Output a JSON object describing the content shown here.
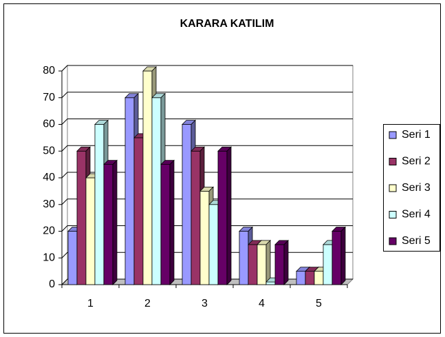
{
  "chart_data": {
    "type": "bar3d",
    "title": "KARARA KATILIM",
    "categories": [
      "1",
      "2",
      "3",
      "4",
      "5"
    ],
    "series": [
      {
        "name": "Seri 1",
        "color": "#9999ff",
        "values": [
          20,
          70,
          60,
          20,
          5
        ]
      },
      {
        "name": "Seri 2",
        "color": "#993366",
        "values": [
          50,
          55,
          50,
          15,
          5
        ]
      },
      {
        "name": "Seri 3",
        "color": "#ffffcc",
        "values": [
          40,
          80,
          35,
          15,
          5
        ]
      },
      {
        "name": "Seri 4",
        "color": "#ccffff",
        "values": [
          60,
          70,
          30,
          1,
          15
        ]
      },
      {
        "name": "Seri 5",
        "color": "#660066",
        "values": [
          45,
          45,
          50,
          15,
          20
        ]
      }
    ],
    "ylim": [
      0,
      80
    ],
    "yticks": [
      0,
      10,
      20,
      30,
      40,
      50,
      60,
      70,
      80
    ],
    "grid": true,
    "legend": "right"
  }
}
